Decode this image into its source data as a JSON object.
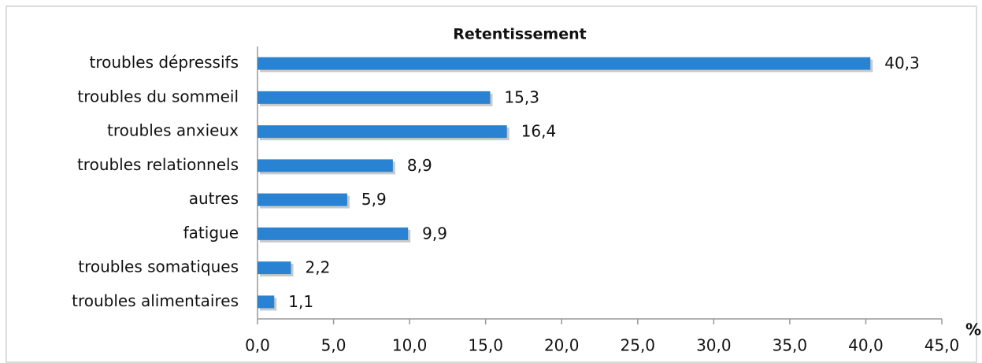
{
  "chart_data": {
    "type": "hbar",
    "title": "Retentissement",
    "categories": [
      "troubles dépressifs",
      "troubles du sommeil",
      "troubles anxieux",
      "troubles relationnels",
      "autres",
      "fatigue",
      "troubles somatiques",
      "troubles alimentaires"
    ],
    "values": [
      40.3,
      15.3,
      16.4,
      8.9,
      5.9,
      9.9,
      2.2,
      1.1
    ],
    "value_labels": [
      "40,3",
      "15,3",
      "16,4",
      "8,9",
      "5,9",
      "9,9",
      "2,2",
      "1,1"
    ],
    "color": "#2a83d2",
    "xlabel": "%",
    "xlim": [
      0,
      45
    ],
    "xticks": [
      {
        "value": 0,
        "label": "0,0"
      },
      {
        "value": 5,
        "label": "5,0"
      },
      {
        "value": 10,
        "label": "10,0"
      },
      {
        "value": 15,
        "label": "15,0"
      },
      {
        "value": 20,
        "label": "20,0"
      },
      {
        "value": 25,
        "label": "25,0"
      },
      {
        "value": 30,
        "label": "30,0"
      },
      {
        "value": 35,
        "label": "35,0"
      },
      {
        "value": 40,
        "label": "40,0"
      },
      {
        "value": 45,
        "label": "45,0"
      }
    ]
  }
}
